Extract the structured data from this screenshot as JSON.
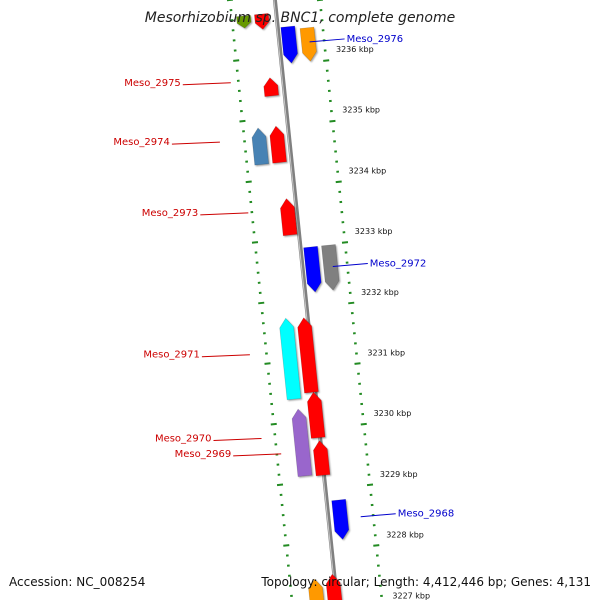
{
  "title": "Mesorhizobium sp. BNC1, complete genome",
  "footer": {
    "accession": "Accession: NC_008254",
    "topology": "Topology: circular; Length: 4,412,446 bp; Genes: 4,131"
  },
  "colors": {
    "backbone": "#808080",
    "forward_label": "#cc0000",
    "reverse_label": "#0000cc",
    "ruler": "#228b22"
  },
  "scale": [
    {
      "kbp": 3236,
      "text": "3236 kbp"
    },
    {
      "kbp": 3235,
      "text": "3235 kbp"
    },
    {
      "kbp": 3234,
      "text": "3234 kbp"
    },
    {
      "kbp": 3233,
      "text": "3233 kbp"
    },
    {
      "kbp": 3232,
      "text": "3232 kbp"
    },
    {
      "kbp": 3231,
      "text": "3231 kbp"
    },
    {
      "kbp": 3230,
      "text": "3230 kbp"
    },
    {
      "kbp": 3229,
      "text": "3229 kbp"
    },
    {
      "kbp": 3228,
      "text": "3228 kbp"
    },
    {
      "kbp": 3227,
      "text": "3227 kbp"
    }
  ],
  "genes": [
    {
      "id": "Meso_2976",
      "strand": "-",
      "color": "#0000ff",
      "start_kbp": 3236.35,
      "end_kbp": 3235.75
    },
    {
      "id": "g-orange-1",
      "strand": "-",
      "color": "#ff9900",
      "start_kbp": 3236.3,
      "end_kbp": 3235.75
    },
    {
      "id": "g-red-top",
      "strand": "+",
      "color": "#ff0000",
      "start_kbp": 3236.6,
      "end_kbp": 3236.35
    },
    {
      "id": "g-olive-top",
      "strand": "+",
      "color": "#669900",
      "start_kbp": 3236.6,
      "end_kbp": 3236.4
    },
    {
      "id": "Meso_2975",
      "strand": "+",
      "color": "#ff0000",
      "start_kbp": 3235.25,
      "end_kbp": 3235.55
    },
    {
      "id": "g-red-2974b",
      "strand": "+",
      "color": "#ff0000",
      "start_kbp": 3234.15,
      "end_kbp": 3234.75
    },
    {
      "id": "Meso_2974",
      "strand": "+",
      "color": "#4682b4",
      "start_kbp": 3234.15,
      "end_kbp": 3234.75
    },
    {
      "id": "Meso_2973",
      "strand": "+",
      "color": "#ff0000",
      "start_kbp": 3232.95,
      "end_kbp": 3233.55
    },
    {
      "id": "Meso_2972",
      "strand": "-",
      "color": "#0000ff",
      "start_kbp": 3232.72,
      "end_kbp": 3231.98
    },
    {
      "id": "g-grey-2972",
      "strand": "-",
      "color": "#808080",
      "start_kbp": 3232.72,
      "end_kbp": 3231.98
    },
    {
      "id": "Meso_2971",
      "strand": "+",
      "color": "#00ffff",
      "start_kbp": 3230.27,
      "end_kbp": 3231.6
    },
    {
      "id": "g-red-2971b",
      "strand": "+",
      "color": "#ff0000",
      "start_kbp": 3230.35,
      "end_kbp": 3231.58
    },
    {
      "id": "Meso_2970",
      "strand": "+",
      "color": "#9966cc",
      "start_kbp": 3229.0,
      "end_kbp": 3230.1
    },
    {
      "id": "g-red-2970b",
      "strand": "+",
      "color": "#ff0000",
      "start_kbp": 3229.6,
      "end_kbp": 3230.35
    },
    {
      "id": "Meso_2969",
      "strand": "+",
      "color": "#ff0000",
      "start_kbp": 3228.98,
      "end_kbp": 3229.55
    },
    {
      "id": "Meso_2968",
      "strand": "-",
      "color": "#0000ff",
      "start_kbp": 3228.55,
      "end_kbp": 3227.9
    },
    {
      "id": "g-orange-bottom",
      "strand": "+",
      "color": "#ff9900",
      "start_kbp": 3226.8,
      "end_kbp": 3227.3
    },
    {
      "id": "g-red-bottom",
      "strand": "+",
      "color": "#ff0000",
      "start_kbp": 3226.8,
      "end_kbp": 3227.35
    }
  ],
  "labels": [
    {
      "gene": "Meso_2976",
      "text": "Meso_2976",
      "side": "right"
    },
    {
      "gene": "Meso_2975",
      "text": "Meso_2975",
      "side": "left"
    },
    {
      "gene": "Meso_2974",
      "text": "Meso_2974",
      "side": "left"
    },
    {
      "gene": "Meso_2973",
      "text": "Meso_2973",
      "side": "left"
    },
    {
      "gene": "Meso_2972",
      "text": "Meso_2972",
      "side": "right"
    },
    {
      "gene": "Meso_2971",
      "text": "Meso_2971",
      "side": "left"
    },
    {
      "gene": "Meso_2970",
      "text": "Meso_2970",
      "side": "left"
    },
    {
      "gene": "Meso_2969",
      "text": "Meso_2969",
      "side": "left"
    },
    {
      "gene": "Meso_2968",
      "text": "Meso_2968",
      "side": "right"
    }
  ]
}
